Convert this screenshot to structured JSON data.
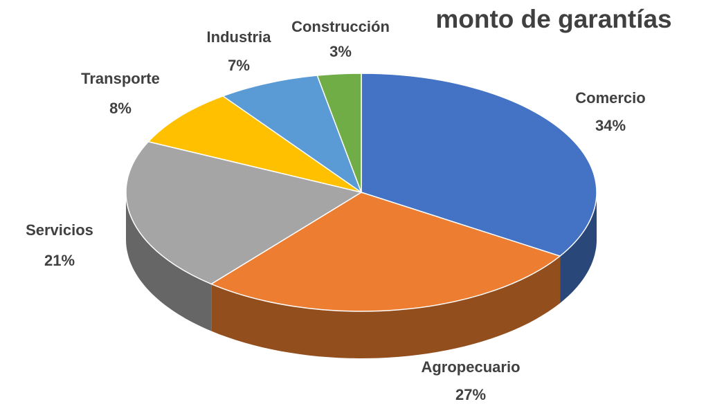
{
  "chart_data": {
    "type": "pie",
    "title": "monto de garantías",
    "categories": [
      "Comercio",
      "Agropecuario",
      "Servicios",
      "Transporte",
      "Industria",
      "Construcción"
    ],
    "values": [
      34,
      27,
      21,
      8,
      7,
      3
    ],
    "value_labels": [
      "34%",
      "27%",
      "21%",
      "8%",
      "7%",
      "3%"
    ],
    "colors": [
      "#4472c4",
      "#ed7d31",
      "#a5a5a5",
      "#ffc000",
      "#5b9bd5",
      "#70ad47"
    ]
  }
}
